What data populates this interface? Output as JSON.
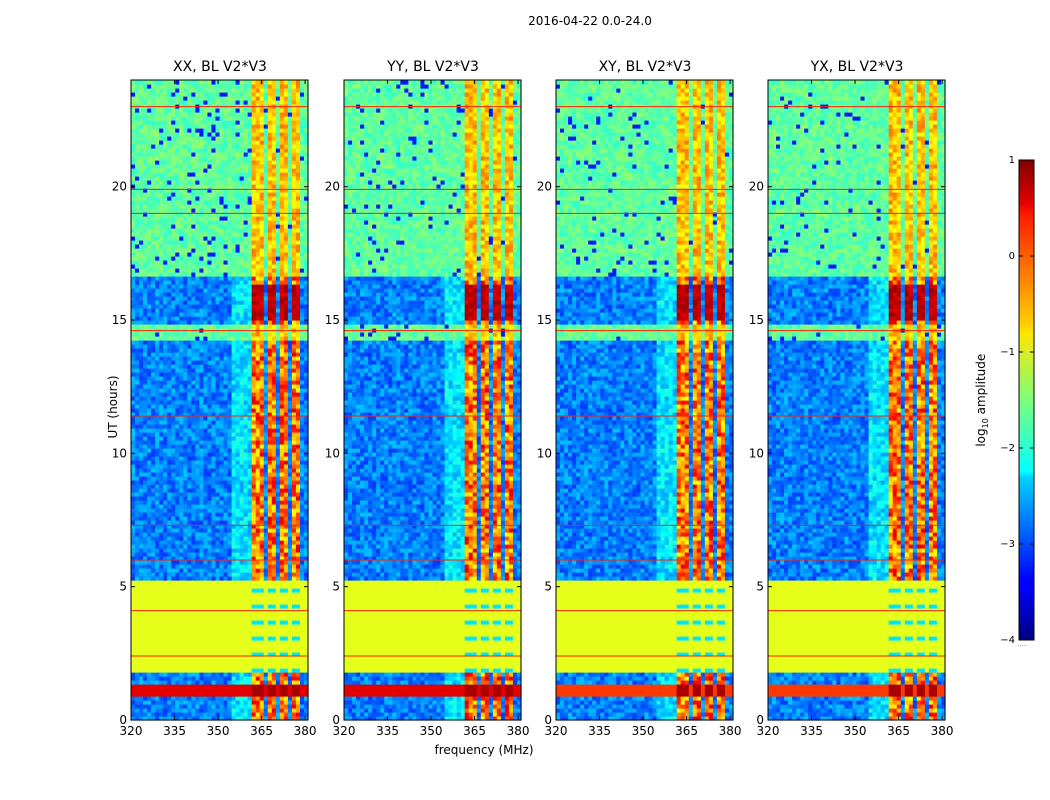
{
  "chart_data": {
    "type": "heatmap",
    "suptitle": "2016-04-22 0.0-24.0",
    "panels": [
      {
        "title": "XX, BL V2*V3",
        "pol": "XX"
      },
      {
        "title": "YY, BL V2*V3",
        "pol": "YY"
      },
      {
        "title": "XY, BL V2*V3",
        "pol": "XY"
      },
      {
        "title": "YX, BL V2*V3",
        "pol": "YX"
      }
    ],
    "xlabel": "frequency (MHz)",
    "ylabel": "UT (hours)",
    "xlim": [
      320,
      381
    ],
    "ylim": [
      0,
      24
    ],
    "xticks": [
      320,
      335,
      350,
      365,
      380
    ],
    "yticks": [
      0,
      5,
      10,
      15,
      20
    ],
    "colorbar": {
      "label": "log10 amplitude",
      "label_main": "log",
      "label_sub": "10",
      "label_rest": " amplitude",
      "range": [
        -4,
        1
      ],
      "ticks": [
        1,
        0,
        -1,
        -2,
        -3,
        -4
      ],
      "tick_labels": [
        "1",
        "0",
        "−1",
        "−2",
        "−3",
        "−4"
      ],
      "colormap": "jet"
    },
    "features": {
      "flagged_blocks_hours": [
        [
          1.8,
          5.3
        ]
      ],
      "quiet_blue_bands_hours": [
        [
          0.0,
          1.8
        ],
        [
          5.3,
          14.3
        ],
        [
          14.8,
          16.7
        ]
      ],
      "noisy_green_bands_hours": [
        [
          16.7,
          24.0
        ]
      ],
      "strong_rfi_band_hours": [
        0.9,
        1.4
      ],
      "rfi_channels_mhz": [
        [
          362.0,
          366.0
        ],
        [
          367.5,
          370.0
        ],
        [
          371.5,
          374.0
        ],
        [
          375.5,
          378.0
        ]
      ],
      "horizontal_rfi_lines_hours": [
        2.4,
        4.1,
        6.0,
        7.3,
        11.4,
        14.6,
        19.0,
        19.9,
        23.0
      ]
    }
  }
}
